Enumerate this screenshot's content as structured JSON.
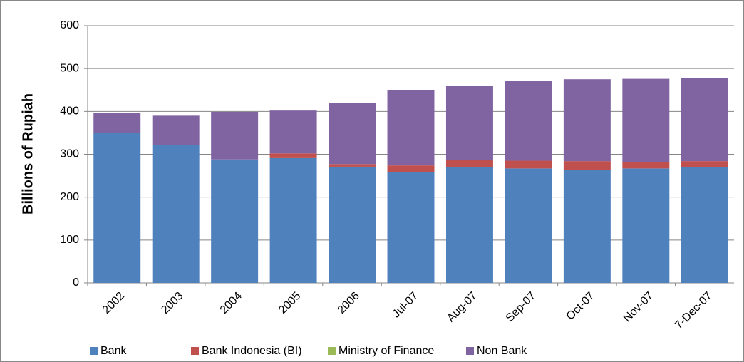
{
  "chart_data": {
    "type": "stacked-bar",
    "y_label": "Billions of Rupiah",
    "categories": [
      "2002",
      "2003",
      "2004",
      "2005",
      "2006",
      "Jul-07",
      "Aug-07",
      "Sep-07",
      "Oct-07",
      "Nov-07",
      "7-Dec-07"
    ],
    "series": [
      {
        "name": "Bank",
        "color": "#4f81bd",
        "values": [
          350,
          322,
          288,
          291,
          271,
          259,
          270,
          267,
          264,
          267,
          270
        ]
      },
      {
        "name": "Bank Indonesia (BI)",
        "color": "#c0504d",
        "values": [
          0,
          0,
          0,
          11,
          6,
          15,
          17,
          18,
          20,
          14,
          14
        ]
      },
      {
        "name": "Ministry of Finance",
        "color": "#9bbb59",
        "values": [
          0,
          0,
          0,
          0,
          0,
          0,
          0,
          0,
          0,
          0,
          0
        ]
      },
      {
        "name": "Non Bank",
        "color": "#8064a2",
        "values": [
          47,
          68,
          111,
          100,
          142,
          175,
          172,
          187,
          191,
          195,
          194
        ]
      }
    ],
    "ylim": [
      0,
      600
    ],
    "yticks": [
      0,
      100,
      200,
      300,
      400,
      500,
      600
    ],
    "grid": true,
    "legend": "bottom"
  }
}
